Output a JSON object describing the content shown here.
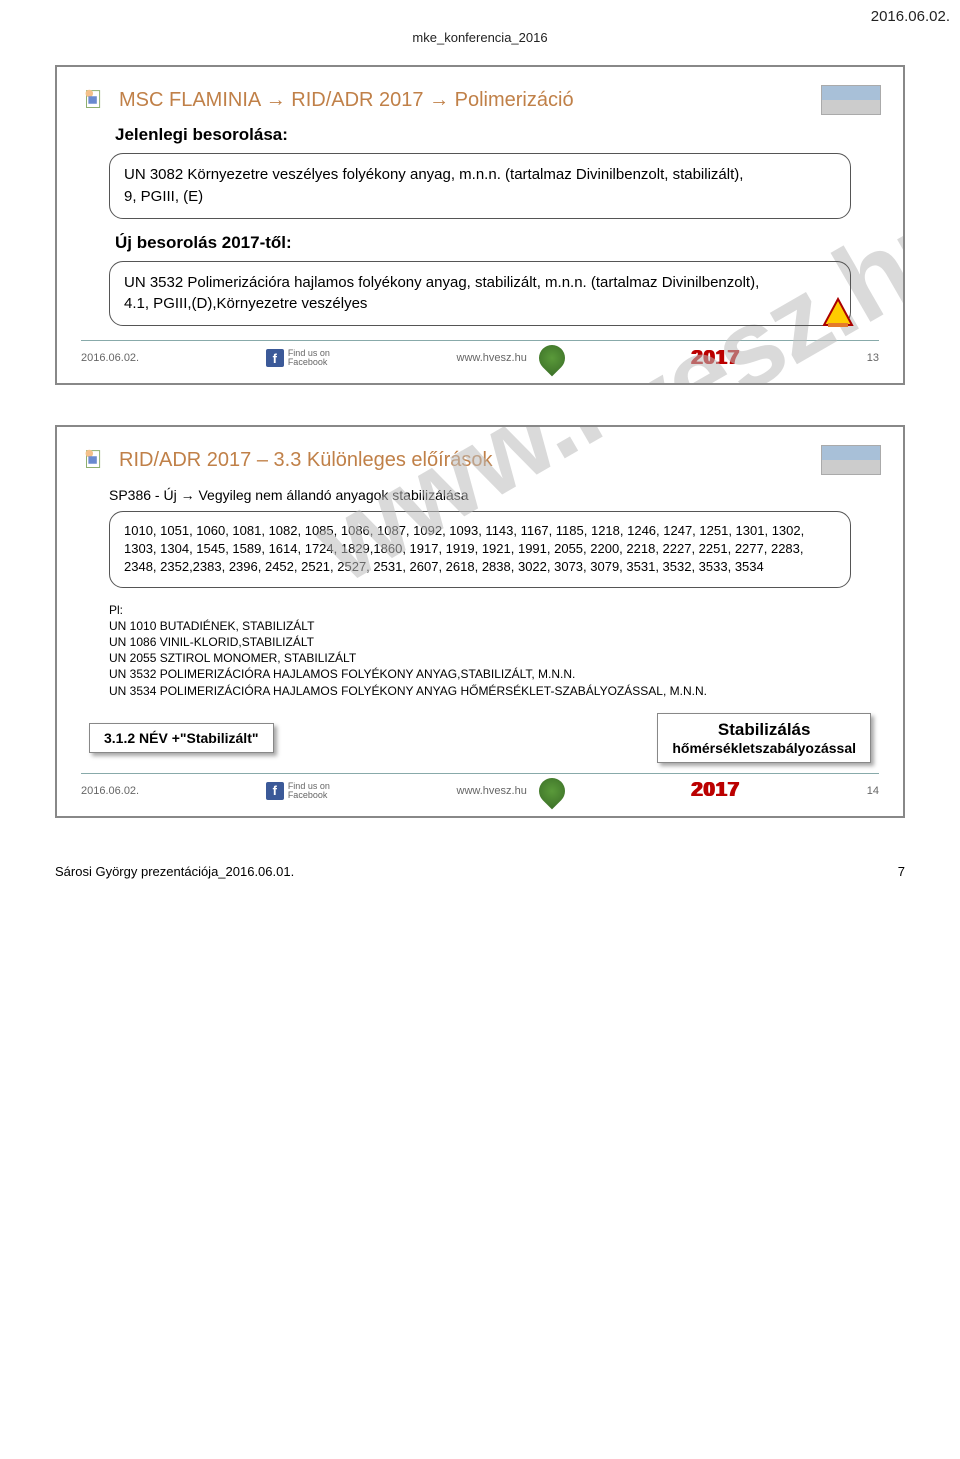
{
  "doc": {
    "top_right_date": "2016.06.02.",
    "top_header": "mke_konferencia_2016",
    "bottom_left": "Sárosi György prezentációja_2016.06.01.",
    "bottom_right": "7",
    "watermark": "www.hvesz.hu"
  },
  "slide1": {
    "title": "MSC FLAMINIA → RID/ADR 2017 → Polimerizáció",
    "sub1": "Jelenlegi besorolása:",
    "box1": "UN 3082 Környezetre veszélyes folyékony anyag, m.n.n. (tartalmaz Divinilbenzolt, stabilizált),\n9, PGIII, (E)",
    "sub2": "Új besorolás 2017-től:",
    "box2": "UN 3532 Polimerizációra hajlamos folyékony anyag, stabilizált, m.n.n. (tartalmaz Divinilbenzolt),\n4.1, PGIII,(D),Környezetre veszélyes",
    "footer_date": "2016.06.02.",
    "footer_fb": "Find us on\nFacebook",
    "footer_url": "www.hvesz.hu",
    "footer_year": "2017",
    "footer_num": "13"
  },
  "slide2": {
    "title": "RID/ADR 2017 – 3.3 Különleges előírások",
    "sp_line": "SP386 - Új → Vegyileg nem állandó anyagok stabilizálása",
    "list_box": "1010, 1051, 1060, 1081, 1082, 1085, 1086, 1087, 1092, 1093, 1143, 1167, 1185, 1218, 1246, 1247, 1251, 1301, 1302, 1303, 1304, 1545, 1589, 1614, 1724, 1829,1860, 1917, 1919, 1921, 1991, 2055, 2200, 2218, 2227, 2251, 2277, 2283, 2348, 2352,2383, 2396, 2452, 2521, 2527, 2531, 2607, 2618, 2838, 3022, 3073, 3079, 3531, 3532, 3533, 3534",
    "pl_label": "Pl:",
    "pl1": "UN 1010 BUTADIÉNEK, STABILIZÁLT",
    "pl2": "UN 1086 VINIL-KLORID,STABILIZÁLT",
    "pl3": "UN 2055 SZTIROL MONOMER, STABILIZÁLT",
    "pl4": "UN 3532 POLIMERIZÁCIÓRA HAJLAMOS FOLYÉKONY ANYAG,STABILIZÁLT, M.N.N.",
    "pl5": "UN 3534 POLIMERIZÁCIÓRA HAJLAMOS FOLYÉKONY ANYAG HŐMÉRSÉKLET-SZABÁLYOZÁSSAL, M.N.N.",
    "left_box": "3.1.2 NÉV +\"Stabilizált\"",
    "right_box_l1": "Stabilizálás",
    "right_box_l2": "hőmérsékletszabályozással",
    "footer_date": "2016.06.02.",
    "footer_fb": "Find us on\nFacebook",
    "footer_url": "www.hvesz.hu",
    "footer_year": "2017",
    "footer_num": "14"
  }
}
